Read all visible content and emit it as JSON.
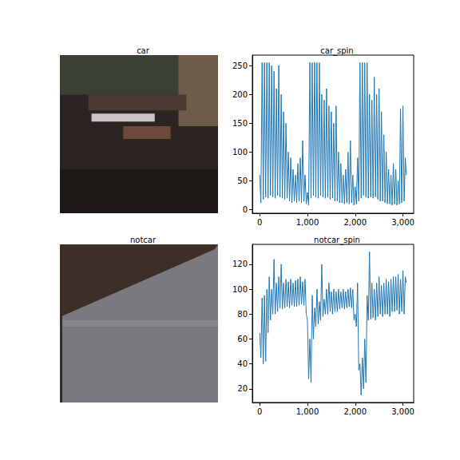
{
  "chart_data": [
    {
      "type": "image",
      "title": "car"
    },
    {
      "type": "line",
      "title": "car_spin",
      "color": "#1f77b4",
      "xlim": [
        -154,
        3225
      ],
      "xticks": [
        0,
        1000,
        2000,
        3000
      ],
      "ylim": [
        -6,
        268
      ],
      "yticks": [
        0,
        50,
        100,
        150,
        200,
        250
      ],
      "x": [
        0,
        25,
        50,
        75,
        100,
        125,
        150,
        175,
        200,
        225,
        250,
        275,
        300,
        325,
        350,
        375,
        400,
        425,
        450,
        475,
        500,
        525,
        550,
        575,
        600,
        625,
        650,
        675,
        700,
        725,
        750,
        775,
        800,
        825,
        850,
        875,
        900,
        925,
        950,
        975,
        1000,
        1025,
        1050,
        1075,
        1100,
        1125,
        1150,
        1175,
        1200,
        1225,
        1250,
        1275,
        1300,
        1325,
        1350,
        1375,
        1400,
        1425,
        1450,
        1475,
        1500,
        1525,
        1550,
        1575,
        1600,
        1625,
        1650,
        1675,
        1700,
        1725,
        1750,
        1775,
        1800,
        1825,
        1850,
        1875,
        1900,
        1925,
        1950,
        1975,
        2000,
        2025,
        2050,
        2075,
        2100,
        2125,
        2150,
        2175,
        2200,
        2225,
        2250,
        2275,
        2300,
        2325,
        2350,
        2375,
        2400,
        2425,
        2450,
        2475,
        2500,
        2525,
        2550,
        2575,
        2600,
        2625,
        2650,
        2675,
        2700,
        2725,
        2750,
        2775,
        2800,
        2825,
        2850,
        2875,
        2900,
        2925,
        2950,
        2975,
        3000,
        3025,
        3050,
        3071
      ],
      "values": [
        60,
        12,
        255,
        18,
        255,
        22,
        255,
        20,
        255,
        25,
        250,
        22,
        240,
        20,
        210,
        25,
        250,
        22,
        200,
        20,
        170,
        18,
        150,
        20,
        100,
        15,
        90,
        12,
        70,
        15,
        60,
        12,
        80,
        15,
        90,
        12,
        120,
        15,
        60,
        10,
        30,
        8,
        255,
        20,
        255,
        25,
        255,
        22,
        255,
        20,
        255,
        25,
        200,
        22,
        190,
        20,
        210,
        22,
        180,
        18,
        170,
        20,
        150,
        15,
        180,
        15,
        100,
        12,
        80,
        12,
        60,
        10,
        70,
        12,
        100,
        10,
        120,
        12,
        60,
        8,
        40,
        10,
        90,
        15,
        255,
        20,
        255,
        25,
        255,
        22,
        255,
        20,
        200,
        22,
        190,
        20,
        230,
        22,
        200,
        18,
        210,
        15,
        170,
        15,
        130,
        12,
        100,
        10,
        70,
        10,
        60,
        8,
        80,
        10,
        70,
        8,
        50,
        10,
        175,
        12,
        180,
        15,
        90,
        60
      ]
    },
    {
      "type": "image",
      "title": "notcar"
    },
    {
      "type": "line",
      "title": "notcar_spin",
      "color": "#1f77b4",
      "xlim": [
        -154,
        3225
      ],
      "xticks": [
        0,
        1000,
        2000,
        3000
      ],
      "ylim": [
        9,
        136
      ],
      "yticks": [
        20,
        40,
        60,
        80,
        100,
        120
      ],
      "x": [
        0,
        25,
        50,
        75,
        100,
        125,
        150,
        175,
        200,
        225,
        250,
        275,
        300,
        325,
        350,
        375,
        400,
        425,
        450,
        475,
        500,
        525,
        550,
        575,
        600,
        625,
        650,
        675,
        700,
        725,
        750,
        775,
        800,
        825,
        850,
        875,
        900,
        925,
        950,
        975,
        1000,
        1025,
        1050,
        1075,
        1100,
        1125,
        1150,
        1175,
        1200,
        1225,
        1250,
        1275,
        1300,
        1325,
        1350,
        1375,
        1400,
        1425,
        1450,
        1475,
        1500,
        1525,
        1550,
        1575,
        1600,
        1625,
        1650,
        1675,
        1700,
        1725,
        1750,
        1775,
        1800,
        1825,
        1850,
        1875,
        1900,
        1925,
        1950,
        1975,
        2000,
        2025,
        2050,
        2075,
        2100,
        2125,
        2150,
        2175,
        2200,
        2225,
        2250,
        2275,
        2300,
        2325,
        2350,
        2375,
        2400,
        2425,
        2450,
        2475,
        2500,
        2525,
        2550,
        2575,
        2600,
        2625,
        2650,
        2675,
        2700,
        2725,
        2750,
        2775,
        2800,
        2825,
        2850,
        2875,
        2900,
        2925,
        2950,
        2975,
        3000,
        3025,
        3050,
        3071
      ],
      "values": [
        65,
        45,
        93,
        40,
        95,
        42,
        100,
        65,
        110,
        75,
        100,
        80,
        124,
        80,
        105,
        82,
        110,
        85,
        120,
        84,
        105,
        85,
        108,
        86,
        106,
        85,
        108,
        87,
        105,
        86,
        107,
        86,
        108,
        87,
        110,
        88,
        106,
        87,
        108,
        80,
        75,
        28,
        60,
        25,
        95,
        60,
        85,
        70,
        100,
        72,
        90,
        75,
        120,
        78,
        92,
        80,
        100,
        80,
        105,
        82,
        98,
        80,
        100,
        82,
        98,
        82,
        100,
        84,
        98,
        85,
        100,
        84,
        98,
        85,
        100,
        86,
        101,
        85,
        100,
        75,
        80,
        70,
        105,
        35,
        40,
        15,
        45,
        20,
        60,
        25,
        95,
        75,
        130,
        76,
        105,
        77,
        100,
        75,
        105,
        78,
        110,
        80,
        103,
        78,
        105,
        80,
        108,
        80,
        106,
        78,
        108,
        82,
        110,
        82,
        110,
        83,
        112,
        80,
        108,
        82,
        115,
        80,
        110,
        105
      ]
    }
  ]
}
